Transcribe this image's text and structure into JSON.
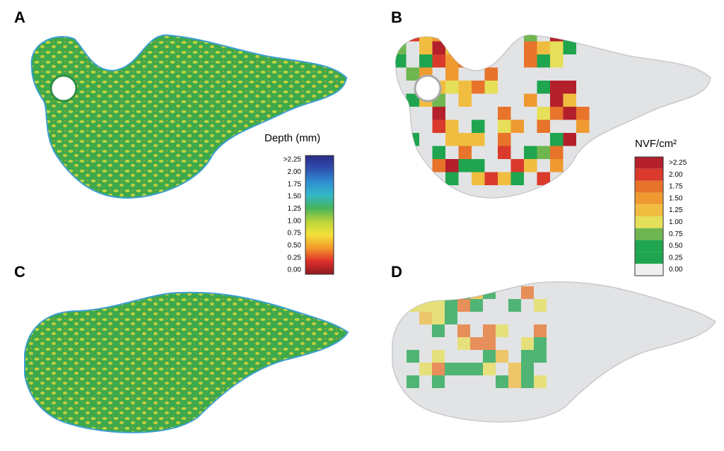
{
  "panels": [
    {
      "label": "A"
    },
    {
      "label": "B"
    },
    {
      "label": "C"
    },
    {
      "label": "D"
    }
  ],
  "depth_legend": {
    "title": "Depth (mm)",
    "ticks": [
      ">2.25",
      "2.00",
      "1.75",
      "1.50",
      "1.25",
      "1.00",
      "0.75",
      "0.50",
      "0.25",
      "0.00"
    ],
    "colors": [
      "#2a2a86",
      "#2f4fb0",
      "#2f8fd0",
      "#33b8c8",
      "#49b35a",
      "#b9d43a",
      "#f4e23a",
      "#f39a2a",
      "#e0302a",
      "#8c1a22"
    ]
  },
  "nvf_legend": {
    "title": "NVF/cm²",
    "ticks": [
      ">2.25",
      "2.00",
      "1.75",
      "1.50",
      "1.25",
      "1.00",
      "0.75",
      "0.50",
      "0.25",
      "0.00"
    ],
    "colors": [
      "#b3202b",
      "#d93a2c",
      "#e8732b",
      "#ef9a31",
      "#f1bd40",
      "#e6df59",
      "#6fb651",
      "#1fa54f",
      "#1fa54f",
      "#efefef"
    ]
  }
}
